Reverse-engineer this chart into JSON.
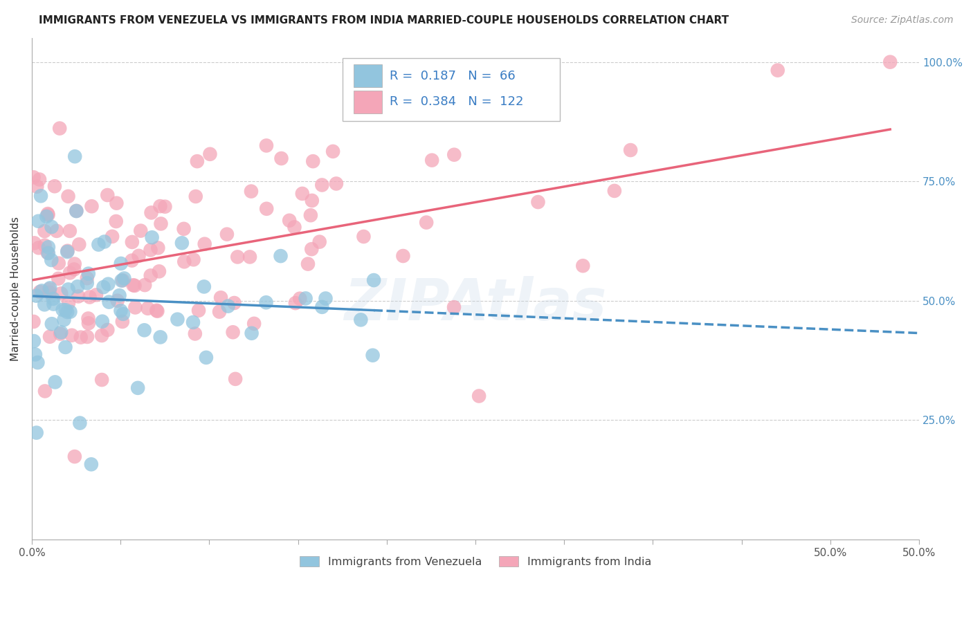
{
  "title": "IMMIGRANTS FROM VENEZUELA VS IMMIGRANTS FROM INDIA MARRIED-COUPLE HOUSEHOLDS CORRELATION CHART",
  "source": "Source: ZipAtlas.com",
  "ylabel": "Married-couple Households",
  "xlim": [
    0.0,
    0.5
  ],
  "ylim": [
    0.0,
    1.05
  ],
  "yticks": [
    0.25,
    0.5,
    0.75,
    1.0
  ],
  "xtick_positions": [
    0.0,
    0.05,
    0.1,
    0.15,
    0.2,
    0.25,
    0.3,
    0.35,
    0.4,
    0.45,
    0.5
  ],
  "xtick_labels_show": {
    "0.0": "0.0%",
    "0.5": "50.0%"
  },
  "venezuela_color": "#92C5DE",
  "india_color": "#F4A6B8",
  "venezuela_R": 0.187,
  "venezuela_N": 66,
  "india_R": 0.384,
  "india_N": 122,
  "venezuela_line_color": "#4A90C4",
  "india_line_color": "#E8647A",
  "watermark": "ZIPAtlas",
  "background_color": "#FFFFFF",
  "right_tick_color": "#4A90C4",
  "title_fontsize": 11,
  "source_fontsize": 10,
  "axis_label_fontsize": 11,
  "tick_fontsize": 11
}
